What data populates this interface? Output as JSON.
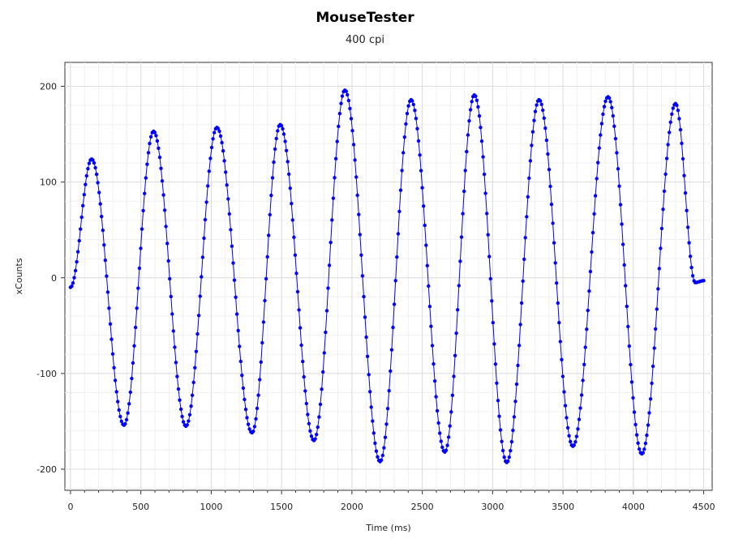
{
  "chart_data": {
    "type": "scatter",
    "title": "MouseTester",
    "subtitle": "400 cpi",
    "xlabel": "Time (ms)",
    "ylabel": "xCounts",
    "xlim": [
      -40,
      4560
    ],
    "ylim": [
      -222,
      225
    ],
    "xticks": [
      0,
      500,
      1000,
      1500,
      2000,
      2500,
      3000,
      3500,
      4000,
      4500
    ],
    "yticks": [
      -200,
      -100,
      0,
      100,
      200
    ],
    "grid": true,
    "series": [
      {
        "color": "#0000ff",
        "line": true,
        "markers": "dot",
        "extrema": [
          {
            "x": 0,
            "y": -10
          },
          {
            "x": 150,
            "y": 124
          },
          {
            "x": 380,
            "y": -154
          },
          {
            "x": 590,
            "y": 153
          },
          {
            "x": 820,
            "y": -155
          },
          {
            "x": 1040,
            "y": 157
          },
          {
            "x": 1290,
            "y": -162
          },
          {
            "x": 1490,
            "y": 160
          },
          {
            "x": 1730,
            "y": -170
          },
          {
            "x": 1950,
            "y": 196
          },
          {
            "x": 2200,
            "y": -192
          },
          {
            "x": 2420,
            "y": 186
          },
          {
            "x": 2660,
            "y": -182
          },
          {
            "x": 2870,
            "y": 191
          },
          {
            "x": 3100,
            "y": -193
          },
          {
            "x": 3330,
            "y": 186
          },
          {
            "x": 3570,
            "y": -176
          },
          {
            "x": 3820,
            "y": 189
          },
          {
            "x": 4060,
            "y": -184
          },
          {
            "x": 4300,
            "y": 182
          },
          {
            "x": 4440,
            "y": -5
          },
          {
            "x": 4500,
            "y": -3
          }
        ]
      }
    ]
  }
}
